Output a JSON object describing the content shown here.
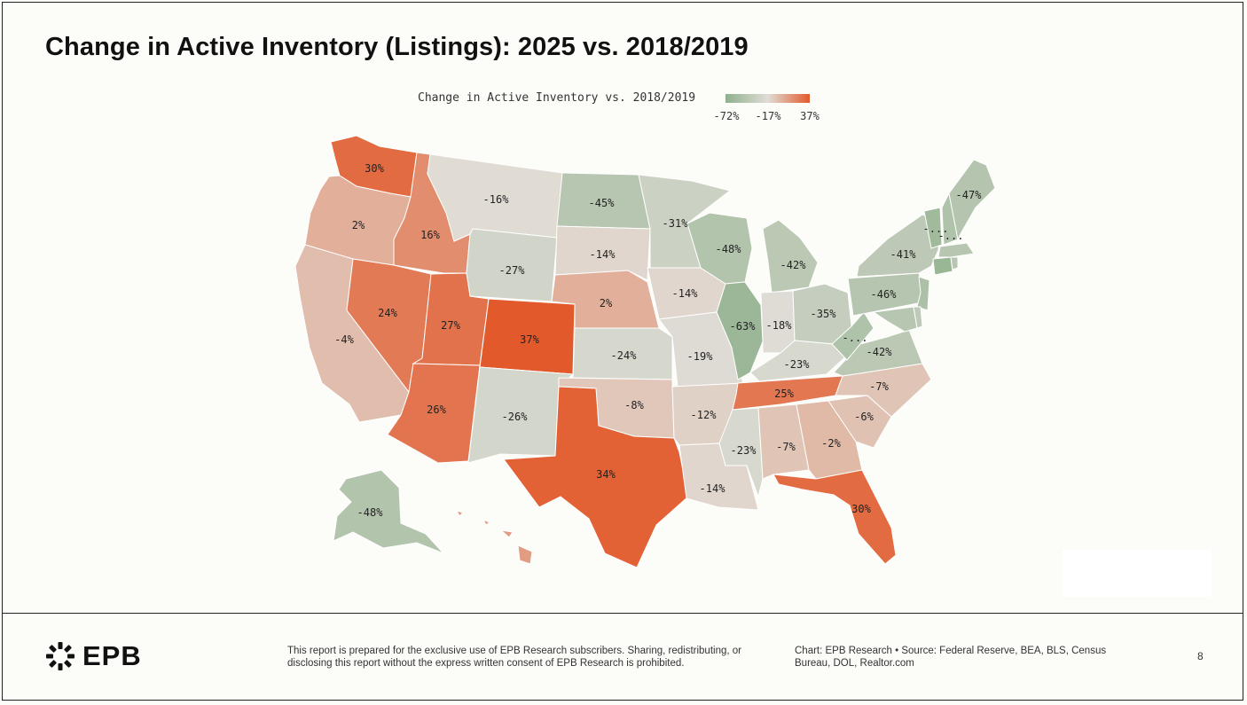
{
  "title": "Change in Active Inventory (Listings): 2025 vs. 2018/2019",
  "legend": {
    "title": "Change in Active Inventory vs. 2018/2019",
    "min_label": "-72%",
    "mid_label": "-17%",
    "max_label": "37%",
    "colors": {
      "low": "#8fb08c",
      "mid": "#e0ddd6",
      "high": "#e25a2c"
    }
  },
  "map_data": {
    "type": "choropleth",
    "unit": "percent change",
    "scale": {
      "min": -72,
      "mid": -17,
      "max": 37
    },
    "states": [
      {
        "code": "WA",
        "label": "30%",
        "value": 30
      },
      {
        "code": "OR",
        "label": "2%",
        "value": 2
      },
      {
        "code": "CA",
        "label": "-4%",
        "value": -4
      },
      {
        "code": "ID",
        "label": "16%",
        "value": 16
      },
      {
        "code": "NV",
        "label": "24%",
        "value": 24
      },
      {
        "code": "MT",
        "label": "-16%",
        "value": -16
      },
      {
        "code": "WY",
        "label": "-27%",
        "value": -27
      },
      {
        "code": "UT",
        "label": "27%",
        "value": 27
      },
      {
        "code": "AZ",
        "label": "26%",
        "value": 26
      },
      {
        "code": "CO",
        "label": "37%",
        "value": 37
      },
      {
        "code": "NM",
        "label": "-26%",
        "value": -26
      },
      {
        "code": "ND",
        "label": "-45%",
        "value": -45
      },
      {
        "code": "SD",
        "label": "-14%",
        "value": -14
      },
      {
        "code": "NE",
        "label": "2%",
        "value": 2
      },
      {
        "code": "KS",
        "label": "-24%",
        "value": -24
      },
      {
        "code": "OK",
        "label": "-8%",
        "value": -8
      },
      {
        "code": "TX",
        "label": "34%",
        "value": 34
      },
      {
        "code": "MN",
        "label": "-31%",
        "value": -31
      },
      {
        "code": "IA",
        "label": "-14%",
        "value": -14
      },
      {
        "code": "MO",
        "label": "-19%",
        "value": -19
      },
      {
        "code": "AR",
        "label": "-12%",
        "value": -12
      },
      {
        "code": "LA",
        "label": "-14%",
        "value": -14
      },
      {
        "code": "WI",
        "label": "-48%",
        "value": -48
      },
      {
        "code": "IL",
        "label": "-63%",
        "value": -63
      },
      {
        "code": "MI",
        "label": "-42%",
        "value": -42
      },
      {
        "code": "IN",
        "label": "-18%",
        "value": -18
      },
      {
        "code": "OH",
        "label": "-35%",
        "value": -35
      },
      {
        "code": "KY",
        "label": "-23%",
        "value": -23
      },
      {
        "code": "TN",
        "label": "25%",
        "value": 25
      },
      {
        "code": "MS",
        "label": "-23%",
        "value": -23
      },
      {
        "code": "AL",
        "label": "-7%",
        "value": -7
      },
      {
        "code": "GA",
        "label": "-2%",
        "value": -2
      },
      {
        "code": "FL",
        "label": "30%",
        "value": 30
      },
      {
        "code": "SC",
        "label": "-6%",
        "value": -6
      },
      {
        "code": "NC",
        "label": "-7%",
        "value": -7
      },
      {
        "code": "VA",
        "label": "-42%",
        "value": -42
      },
      {
        "code": "WV",
        "label": "-...",
        "value": -50
      },
      {
        "code": "PA",
        "label": "-46%",
        "value": -46
      },
      {
        "code": "NY",
        "label": "-41%",
        "value": -41
      },
      {
        "code": "NJ",
        "label": "",
        "value": -52
      },
      {
        "code": "MD",
        "label": "",
        "value": -45
      },
      {
        "code": "DE",
        "label": "",
        "value": -40
      },
      {
        "code": "CT",
        "label": "",
        "value": -65
      },
      {
        "code": "MA",
        "label": "",
        "value": -45
      },
      {
        "code": "RI",
        "label": "",
        "value": -45
      },
      {
        "code": "VT",
        "label": "-...",
        "value": -60
      },
      {
        "code": "NH",
        "label": "-...",
        "value": -50
      },
      {
        "code": "ME",
        "label": "-47%",
        "value": -47
      },
      {
        "code": "AK",
        "label": "-48%",
        "value": -48
      },
      {
        "code": "HI",
        "label": "",
        "value": 10
      }
    ]
  },
  "footer": {
    "logo_text": "EPB",
    "disclaimer": "This report is prepared for the exclusive use of EPB Research subscribers. Sharing, redistributing, or disclosing this report without the express written consent of EPB Research is prohibited.",
    "source": "Chart: EPB Research  •  Source: Federal Reserve, BEA, BLS, Census Bureau, DOL, Realtor.com",
    "page_number": "8"
  }
}
